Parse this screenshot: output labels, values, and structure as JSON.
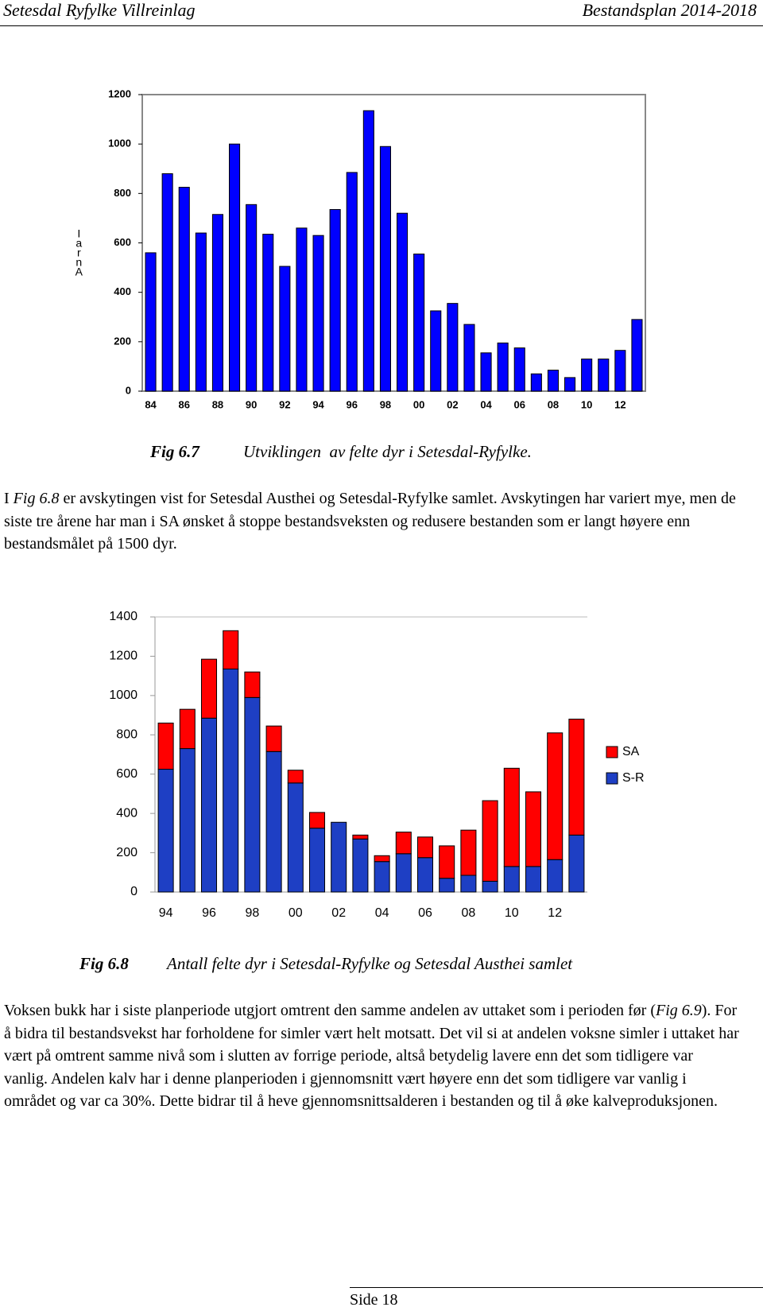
{
  "header": {
    "left": "Setesdal Ryfylke Villreinlag",
    "right": "Bestandsplan 2014-2018"
  },
  "chart_data": [
    {
      "type": "bar",
      "y_label": "IarnA",
      "categories": [
        "84",
        null,
        "86",
        null,
        "88",
        null,
        "90",
        null,
        "92",
        null,
        "94",
        null,
        "96",
        null,
        "98",
        null,
        "00",
        null,
        "02",
        null,
        "04",
        null,
        "06",
        null,
        "08",
        null,
        "10",
        null,
        "12",
        null
      ],
      "values": [
        560,
        880,
        825,
        640,
        715,
        1000,
        755,
        635,
        505,
        660,
        630,
        735,
        885,
        1135,
        990,
        720,
        555,
        325,
        355,
        270,
        155,
        195,
        175,
        70,
        85,
        55,
        130,
        130,
        165,
        290
      ],
      "color": "#0000ff",
      "ylim": [
        0,
        1200
      ],
      "yticks": [
        0,
        200,
        400,
        600,
        800,
        1000,
        1200
      ]
    },
    {
      "type": "stacked_bar",
      "categories": [
        "94",
        null,
        "96",
        null,
        "98",
        null,
        "00",
        null,
        "02",
        null,
        "04",
        null,
        "06",
        null,
        "08",
        null,
        "10",
        null,
        "12",
        null
      ],
      "series": [
        {
          "name": "S-R",
          "color": "#1e3fc4",
          "values": [
            625,
            730,
            885,
            1135,
            990,
            715,
            555,
            325,
            355,
            270,
            155,
            195,
            175,
            70,
            85,
            55,
            130,
            130,
            165,
            290
          ]
        },
        {
          "name": "SA",
          "color": "#ff0000",
          "values": [
            235,
            200,
            300,
            195,
            130,
            130,
            65,
            80,
            0,
            20,
            30,
            110,
            105,
            165,
            230,
            410,
            500,
            380,
            645,
            590
          ]
        }
      ],
      "ylim": [
        0,
        1400
      ],
      "yticks": [
        0,
        200,
        400,
        600,
        800,
        1000,
        1200,
        1400
      ],
      "legend": "right"
    }
  ],
  "captions": [
    {
      "label": "Fig 6.7",
      "text": "Utviklingen  av felte dyr i Setesdal-Ryfylke."
    },
    {
      "label": "Fig 6.8",
      "text": "Antall felte dyr i Setesdal-Ryfylke og Setesdal Austhei samlet"
    }
  ],
  "paragraphs": [
    [
      "I ",
      "Fig 6.8",
      " er avskytingen vist for Setesdal Austhei og Setesdal-Ryfylke samlet. Avskytingen har variert mye, men de siste tre årene har man i SA ønsket å stoppe bestandsveksten og redusere bestanden som er langt høyere enn bestandsmålet på 1500 dyr."
    ],
    [
      "Voksen bukk har i siste planperiode utgjort omtrent den samme andelen av uttaket som i perioden før (",
      "Fig 6.9",
      "). For å bidra til bestandsvekst har forholdene for simler vært helt motsatt. Det vil si at andelen voksne simler i uttaket har vært på omtrent samme nivå som i slutten av forrige periode, altså betydelig lavere enn det som tidligere var vanlig.  Andelen kalv har i denne planperioden i gjennomsnitt vært høyere enn det som tidligere var vanlig i området og var ca 30%. Dette bidrar til å heve gjennomsnittsalderen i bestanden og til å øke kalveproduksjonen."
    ]
  ],
  "footer": "Side 18"
}
